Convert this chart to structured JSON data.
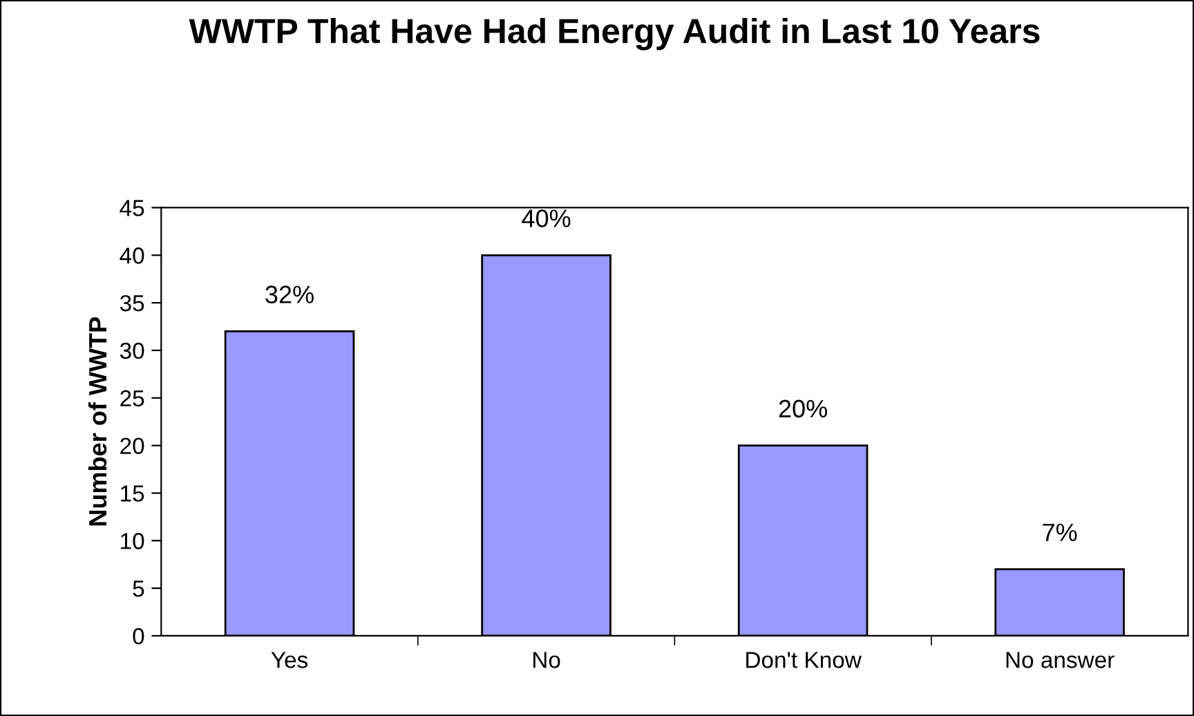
{
  "chart_data": {
    "type": "bar",
    "title": "WWTP That Have Had Energy Audit in Last 10 Years",
    "ylabel": "Number of WWTP",
    "categories": [
      "Yes",
      "No",
      "Don't Know",
      "No answer"
    ],
    "values": [
      32,
      40,
      20,
      7
    ],
    "value_labels": [
      "32%",
      "40%",
      "20%",
      "7%"
    ],
    "color": "#9999ff",
    "ylim": [
      0,
      45
    ],
    "yticks": [
      0,
      5,
      10,
      15,
      20,
      25,
      30,
      35,
      40,
      45
    ],
    "grid": false
  }
}
